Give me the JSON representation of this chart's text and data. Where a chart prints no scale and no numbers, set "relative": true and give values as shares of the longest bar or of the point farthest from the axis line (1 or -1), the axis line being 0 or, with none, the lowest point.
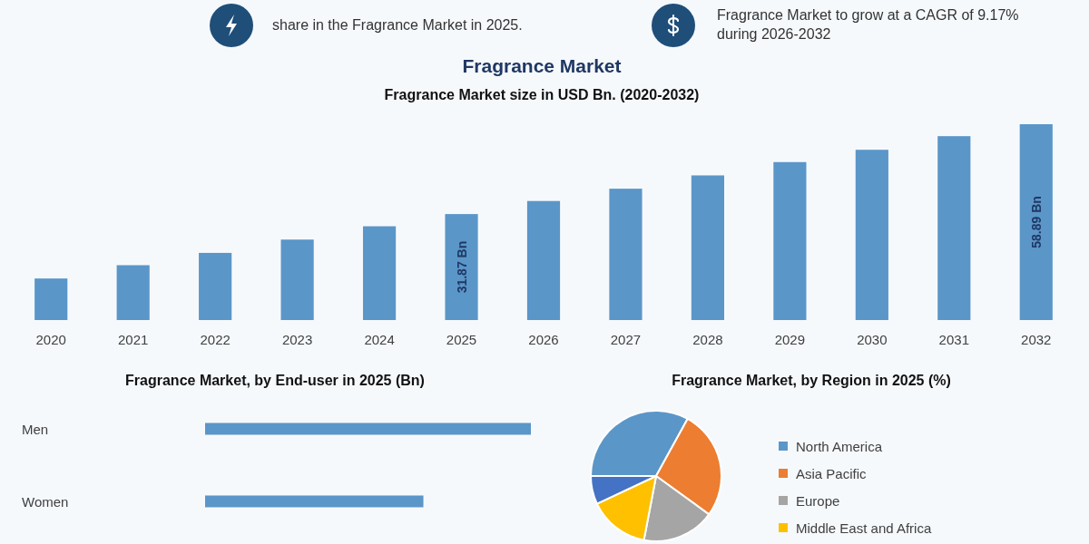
{
  "chart_data": [
    {
      "type": "other",
      "annotations": [
        "share in the Fragrance Market in 2025.",
        "Fragrance Market to grow at a CAGR of 9.17% during 2026-2032"
      ]
    },
    {
      "type": "bar",
      "title": "Fragrance Market",
      "subtitle": "Fragrance Market size in USD Bn. (2020-2032)",
      "categories": [
        "2020",
        "2021",
        "2022",
        "2023",
        "2024",
        "2025",
        "2026",
        "2027",
        "2028",
        "2029",
        "2030",
        "2031",
        "2032"
      ],
      "values": [
        12.5,
        16.5,
        20.2,
        24.2,
        28.2,
        31.87,
        35.8,
        39.5,
        43.5,
        47.5,
        51.2,
        55.3,
        58.89
      ],
      "value_labels": [
        null,
        null,
        null,
        null,
        null,
        "31.87 Bn",
        null,
        null,
        null,
        null,
        null,
        null,
        "58.89 Bn"
      ],
      "color": "#5b96c9",
      "tick_labels": "x"
    },
    {
      "type": "bar",
      "orientation": "horizontal",
      "title": "Fragrance Market, by End-user in 2025 (Bn)",
      "categories": [
        "Men",
        "Women"
      ],
      "values": [
        1,
        0.67
      ],
      "relative": true,
      "color": "#5b96c9"
    },
    {
      "type": "pie",
      "title": "Fragrance Market, by Region in 2025 (%)",
      "categories": [
        "North America",
        "Asia Pacific",
        "Europe",
        "Middle East and Africa",
        null
      ],
      "values": [
        33,
        27,
        18,
        15,
        7
      ],
      "colors": [
        "#5b96c9",
        "#ed7d31",
        "#a5a5a5",
        "#ffc000",
        "#4472c4"
      ],
      "legend": "right"
    }
  ]
}
